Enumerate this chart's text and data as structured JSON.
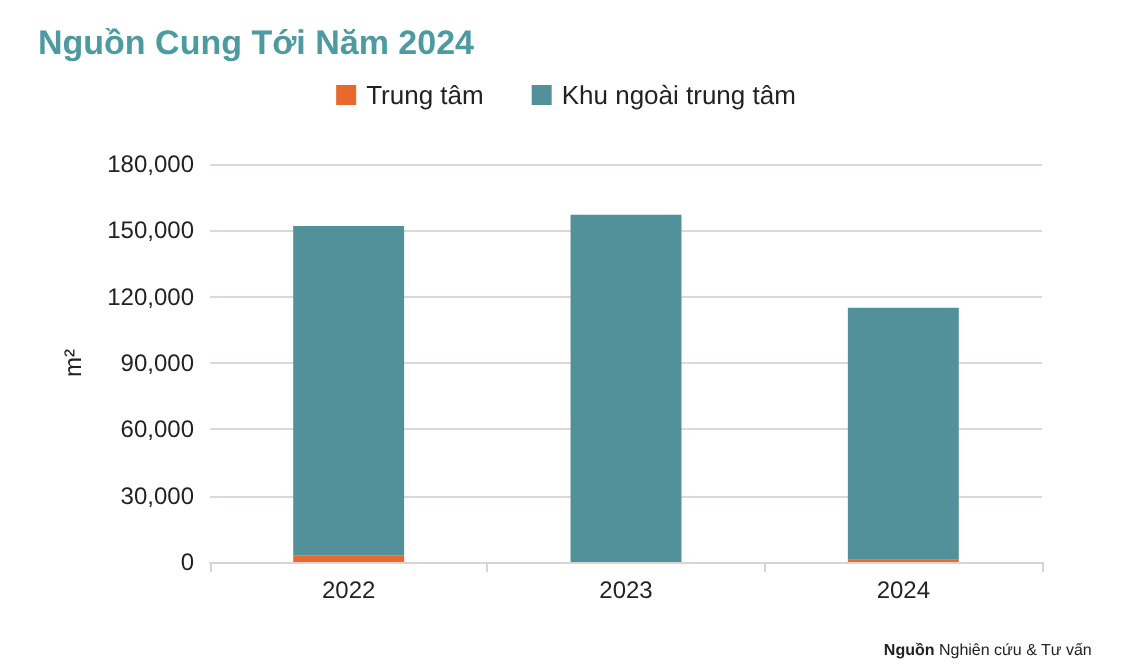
{
  "chart_data": {
    "type": "bar",
    "title": "Nguồn Cung Tới Năm 2024",
    "ylabel": "m²",
    "categories": [
      "2022",
      "2023",
      "2024"
    ],
    "stacked": true,
    "series": [
      {
        "name": "Trung tâm",
        "color": "#e8692e",
        "values": [
          3000,
          0,
          1000
        ]
      },
      {
        "name": "Khu ngoài trung tâm",
        "color": "#52919a",
        "values": [
          149000,
          157000,
          114000
        ]
      }
    ],
    "ylim": [
      0,
      180000
    ],
    "yticks": [
      0,
      {
        "value": 30000,
        "label": "30,000"
      },
      {
        "value": 60000,
        "label": "60,000"
      },
      {
        "value": 90000,
        "label": "90,000"
      },
      {
        "value": 120000,
        "label": "120,000"
      },
      {
        "value": 150000,
        "label": "150,000"
      },
      {
        "value": 180000,
        "label": "180,000"
      }
    ],
    "grid": "y",
    "legend": "top",
    "annotations": [
      "Nguồn Nghiên cứu & Tư vấn"
    ]
  }
}
